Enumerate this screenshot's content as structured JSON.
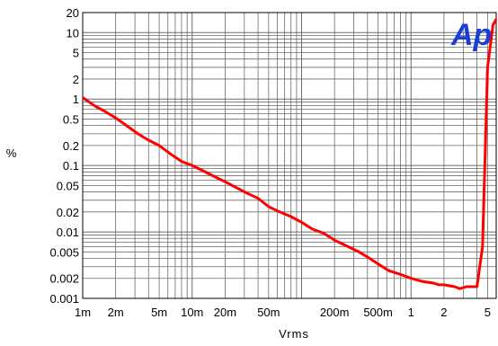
{
  "chart_data": {
    "type": "line",
    "title": "",
    "xlabel": "Vrms",
    "ylabel": "%",
    "x_scale": "log",
    "y_scale": "log",
    "xlim": [
      0.001,
      6
    ],
    "ylim": [
      0.001,
      20
    ],
    "grid": true,
    "legend": "none",
    "x_ticks": [
      {
        "value": 0.001,
        "label": "1m"
      },
      {
        "value": 0.002,
        "label": "2m"
      },
      {
        "value": 0.005,
        "label": "5m"
      },
      {
        "value": 0.01,
        "label": "10m"
      },
      {
        "value": 0.02,
        "label": "20m"
      },
      {
        "value": 0.05,
        "label": "50m"
      },
      {
        "value": 0.2,
        "label": "200m"
      },
      {
        "value": 0.5,
        "label": "500m"
      },
      {
        "value": 1,
        "label": "1"
      },
      {
        "value": 2,
        "label": "2"
      },
      {
        "value": 5,
        "label": "5"
      }
    ],
    "y_ticks": [
      {
        "value": 0.001,
        "label": "0.001"
      },
      {
        "value": 0.002,
        "label": "0.002"
      },
      {
        "value": 0.005,
        "label": "0.005"
      },
      {
        "value": 0.01,
        "label": "0.01"
      },
      {
        "value": 0.02,
        "label": "0.02"
      },
      {
        "value": 0.05,
        "label": "0.05"
      },
      {
        "value": 0.1,
        "label": "0.1"
      },
      {
        "value": 0.2,
        "label": "0.2"
      },
      {
        "value": 0.5,
        "label": "0.5"
      },
      {
        "value": 1,
        "label": "1"
      },
      {
        "value": 2,
        "label": "2"
      },
      {
        "value": 5,
        "label": "5"
      },
      {
        "value": 10,
        "label": "10"
      },
      {
        "value": 20,
        "label": "20"
      }
    ],
    "series": [
      {
        "color": "#ff0000",
        "x": [
          0.001,
          0.0013,
          0.0016,
          0.002,
          0.0025,
          0.0032,
          0.004,
          0.005,
          0.0063,
          0.008,
          0.01,
          0.0126,
          0.016,
          0.02,
          0.025,
          0.032,
          0.04,
          0.05,
          0.063,
          0.08,
          0.1,
          0.126,
          0.16,
          0.2,
          0.25,
          0.32,
          0.4,
          0.5,
          0.63,
          0.8,
          1.0,
          1.26,
          1.6,
          1.8,
          2.0,
          2.5,
          2.8,
          3.2,
          3.6,
          4.0,
          4.5,
          5.0,
          5.6,
          6.0
        ],
        "y": [
          1.05,
          0.78,
          0.65,
          0.52,
          0.4,
          0.3,
          0.24,
          0.2,
          0.15,
          0.115,
          0.1,
          0.083,
          0.068,
          0.057,
          0.047,
          0.038,
          0.032,
          0.024,
          0.02,
          0.017,
          0.014,
          0.011,
          0.0095,
          0.0075,
          0.0063,
          0.0052,
          0.0042,
          0.0033,
          0.0026,
          0.0023,
          0.002,
          0.0018,
          0.0017,
          0.0016,
          0.0016,
          0.0015,
          0.0014,
          0.0015,
          0.0015,
          0.0015,
          0.006,
          3.0,
          13.0,
          16.0
        ]
      }
    ],
    "logo": {
      "text": "Ap",
      "color": "#1a3fd6"
    }
  }
}
